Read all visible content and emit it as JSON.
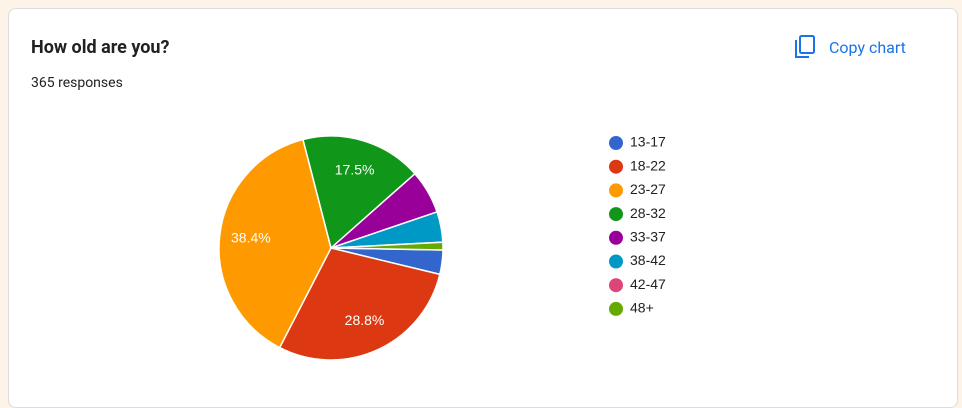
{
  "header": {
    "title": "How old are you?",
    "subtitle": "365 responses",
    "button": "Copy chart"
  },
  "chart_data": {
    "type": "pie",
    "categories": [
      "13-17",
      "18-22",
      "23-27",
      "28-32",
      "33-37",
      "38-42",
      "42-47",
      "48+"
    ],
    "values": [
      3.5,
      28.8,
      38.4,
      17.5,
      6.3,
      4.4,
      0,
      1.1
    ],
    "value_labels": [
      null,
      "28.8%",
      "38.4%",
      "17.5%",
      null,
      null,
      null,
      null
    ],
    "colors": [
      "#3366cc",
      "#dc3912",
      "#ff9900",
      "#109618",
      "#990099",
      "#0099c6",
      "#dd4477",
      "#66aa00"
    ],
    "legend": "right"
  }
}
